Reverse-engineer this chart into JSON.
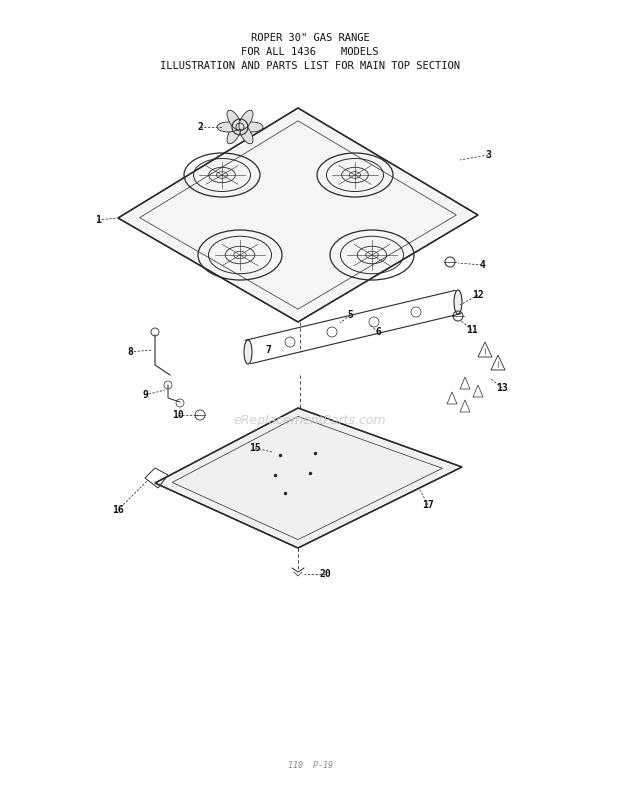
{
  "title_lines": [
    "ROPER 30\" GAS RANGE",
    "FOR ALL 1436    MODELS",
    "ILLUSTRATION AND PARTS LIST FOR MAIN TOP SECTION"
  ],
  "footer_text": "110  P-19",
  "watermark": "eReplacementParts.com",
  "bg_color": "#ffffff",
  "line_color": "#2a2a2a",
  "text_color": "#111111",
  "watermark_color": "#c8c8c8"
}
